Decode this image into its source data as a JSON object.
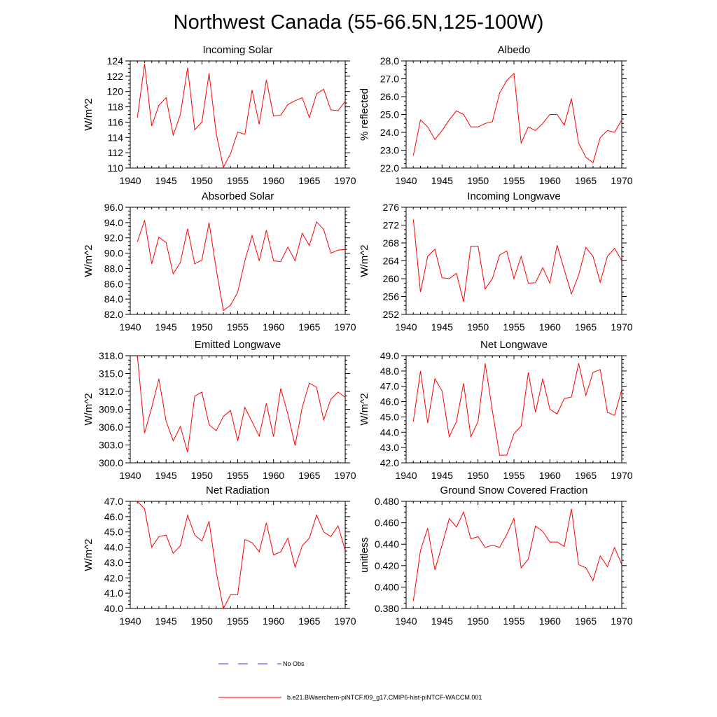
{
  "title": "Northwest Canada (55-66.5N,125-100W)",
  "colors": {
    "model": "#ff0000",
    "obs": "#3333ff",
    "axis": "#000000"
  },
  "legend": {
    "obs_label": "No Obs",
    "model_label": "b.e21.BWaerchem-piNTCF.f09_g17.CMIP6-hist-piNTCF-WACCM.001"
  },
  "chart_data": [
    {
      "type": "line",
      "title": "Incoming Solar",
      "ylabel": "W/m^2",
      "xlim": [
        1940,
        1970
      ],
      "ylim": [
        110,
        124
      ],
      "xticks": [
        1940,
        1945,
        1950,
        1955,
        1960,
        1965,
        1970
      ],
      "yticks": [
        110,
        112,
        114,
        116,
        118,
        120,
        122,
        124
      ],
      "ytick_labels": [
        "110",
        "112",
        "114",
        "116",
        "118",
        "120",
        "122",
        "124"
      ],
      "x": [
        1941,
        1942,
        1943,
        1944,
        1945,
        1946,
        1947,
        1948,
        1949,
        1950,
        1951,
        1952,
        1953,
        1954,
        1955,
        1956,
        1957,
        1958,
        1959,
        1960,
        1961,
        1962,
        1963,
        1964,
        1965,
        1966,
        1967,
        1968,
        1969,
        1970
      ],
      "series": [
        {
          "values": [
            116.6,
            123.6,
            115.5,
            118.2,
            119.2,
            114.3,
            117.0,
            123.1,
            115.0,
            116.0,
            122.4,
            114.5,
            110.1,
            111.9,
            114.7,
            114.4,
            120.2,
            115.7,
            121.5,
            116.8,
            116.9,
            118.3,
            118.8,
            119.2,
            116.6,
            119.7,
            120.3,
            117.6,
            117.5,
            118.7
          ]
        }
      ]
    },
    {
      "type": "line",
      "title": "Albedo",
      "ylabel": "% reflected",
      "xlim": [
        1940,
        1970
      ],
      "ylim": [
        22.0,
        28.0
      ],
      "xticks": [
        1940,
        1945,
        1950,
        1955,
        1960,
        1965,
        1970
      ],
      "yticks": [
        22,
        23,
        24,
        25,
        26,
        27,
        28
      ],
      "ytick_labels": [
        "22.0",
        "23.0",
        "24.0",
        "25.0",
        "26.0",
        "27.0",
        "28.0"
      ],
      "x": [
        1941,
        1942,
        1943,
        1944,
        1945,
        1946,
        1947,
        1948,
        1949,
        1950,
        1951,
        1952,
        1953,
        1954,
        1955,
        1956,
        1957,
        1958,
        1959,
        1960,
        1961,
        1962,
        1963,
        1964,
        1965,
        1966,
        1967,
        1968,
        1969,
        1970
      ],
      "series": [
        {
          "values": [
            22.7,
            24.7,
            24.3,
            23.6,
            24.1,
            24.7,
            25.2,
            25.0,
            24.3,
            24.3,
            24.5,
            24.6,
            26.2,
            26.9,
            27.3,
            23.4,
            24.3,
            24.1,
            24.5,
            25.0,
            25.0,
            24.4,
            25.9,
            23.4,
            22.6,
            22.3,
            23.7,
            24.1,
            24.0,
            24.7
          ]
        }
      ]
    },
    {
      "type": "line",
      "title": "Absorbed Solar",
      "ylabel": "W/m^2",
      "xlim": [
        1940,
        1970
      ],
      "ylim": [
        82.0,
        96.0
      ],
      "xticks": [
        1940,
        1945,
        1950,
        1955,
        1960,
        1965,
        1970
      ],
      "yticks": [
        82,
        84,
        86,
        88,
        90,
        92,
        94,
        96
      ],
      "ytick_labels": [
        "82.0",
        "84.0",
        "86.0",
        "88.0",
        "90.0",
        "92.0",
        "94.0",
        "96.0"
      ],
      "x": [
        1941,
        1942,
        1943,
        1944,
        1945,
        1946,
        1947,
        1948,
        1949,
        1950,
        1951,
        1952,
        1953,
        1954,
        1955,
        1956,
        1957,
        1958,
        1959,
        1960,
        1961,
        1962,
        1963,
        1964,
        1965,
        1966,
        1967,
        1968,
        1969,
        1970
      ],
      "series": [
        {
          "values": [
            91.5,
            94.3,
            88.6,
            92.1,
            91.4,
            87.3,
            88.8,
            93.2,
            88.6,
            89.1,
            94.0,
            87.9,
            82.5,
            83.2,
            84.9,
            89.0,
            92.3,
            89.0,
            93.0,
            89.0,
            88.9,
            90.8,
            89.0,
            92.6,
            91.0,
            94.1,
            93.1,
            90.0,
            90.4,
            90.5
          ]
        }
      ]
    },
    {
      "type": "line",
      "title": "Incoming Longwave",
      "ylabel": "W/m^2",
      "xlim": [
        1940,
        1970
      ],
      "ylim": [
        252,
        276
      ],
      "xticks": [
        1940,
        1945,
        1950,
        1955,
        1960,
        1965,
        1970
      ],
      "yticks": [
        252,
        256,
        260,
        264,
        268,
        272,
        276
      ],
      "ytick_labels": [
        "252",
        "256",
        "260",
        "264",
        "268",
        "272",
        "276"
      ],
      "x": [
        1941,
        1942,
        1943,
        1944,
        1945,
        1946,
        1947,
        1948,
        1949,
        1950,
        1951,
        1952,
        1953,
        1954,
        1955,
        1956,
        1957,
        1958,
        1959,
        1960,
        1961,
        1962,
        1963,
        1964,
        1965,
        1966,
        1967,
        1968,
        1969,
        1970
      ],
      "series": [
        {
          "values": [
            273.3,
            257.0,
            265.0,
            266.6,
            260.2,
            260.0,
            261.2,
            254.8,
            267.3,
            267.3,
            257.7,
            260.0,
            265.3,
            266.2,
            260.0,
            265.0,
            259.0,
            259.1,
            262.5,
            259.0,
            267.5,
            262.0,
            256.6,
            260.8,
            267.0,
            265.0,
            259.2,
            265.0,
            266.8,
            264.0
          ]
        }
      ]
    },
    {
      "type": "line",
      "title": "Emitted Longwave",
      "ylabel": "W/m^2",
      "xlim": [
        1940,
        1970
      ],
      "ylim": [
        300.0,
        318.0
      ],
      "xticks": [
        1940,
        1945,
        1950,
        1955,
        1960,
        1965,
        1970
      ],
      "yticks": [
        300,
        303,
        306,
        309,
        312,
        315,
        318
      ],
      "ytick_labels": [
        "300.0",
        "303.0",
        "306.0",
        "309.0",
        "312.0",
        "315.0",
        "318.0"
      ],
      "x": [
        1941,
        1942,
        1943,
        1944,
        1945,
        1946,
        1947,
        1948,
        1949,
        1950,
        1951,
        1952,
        1953,
        1954,
        1955,
        1956,
        1957,
        1958,
        1959,
        1960,
        1961,
        1962,
        1963,
        1964,
        1965,
        1966,
        1967,
        1968,
        1969,
        1970
      ],
      "series": [
        {
          "values": [
            318.0,
            305.0,
            309.3,
            314.1,
            307.0,
            303.7,
            306.1,
            301.8,
            311.2,
            311.9,
            306.4,
            305.4,
            307.8,
            308.8,
            303.7,
            309.3,
            306.9,
            304.5,
            310.0,
            304.4,
            312.5,
            308.2,
            302.9,
            309.3,
            313.4,
            312.7,
            307.2,
            310.7,
            311.9,
            311.0
          ]
        }
      ]
    },
    {
      "type": "line",
      "title": "Net Longwave",
      "ylabel": "W/m^2",
      "xlim": [
        1940,
        1970
      ],
      "ylim": [
        42.0,
        49.0
      ],
      "xticks": [
        1940,
        1945,
        1950,
        1955,
        1960,
        1965,
        1970
      ],
      "yticks": [
        42,
        43,
        44,
        45,
        46,
        47,
        48,
        49
      ],
      "ytick_labels": [
        "42.0",
        "43.0",
        "44.0",
        "45.0",
        "46.0",
        "47.0",
        "48.0",
        "49.0"
      ],
      "x": [
        1941,
        1942,
        1943,
        1944,
        1945,
        1946,
        1947,
        1948,
        1949,
        1950,
        1951,
        1952,
        1953,
        1954,
        1955,
        1956,
        1957,
        1958,
        1959,
        1960,
        1961,
        1962,
        1963,
        1964,
        1965,
        1966,
        1967,
        1968,
        1969,
        1970
      ],
      "series": [
        {
          "values": [
            44.7,
            48.0,
            44.6,
            47.5,
            46.7,
            43.7,
            44.7,
            47.2,
            43.7,
            44.7,
            48.5,
            45.4,
            42.5,
            42.5,
            43.9,
            44.4,
            47.9,
            45.3,
            47.5,
            45.5,
            45.2,
            46.2,
            46.3,
            48.5,
            46.4,
            47.9,
            48.1,
            45.3,
            45.1,
            46.8
          ]
        }
      ]
    },
    {
      "type": "line",
      "title": "Net Radiation",
      "ylabel": "W/m^2",
      "xlim": [
        1940,
        1970
      ],
      "ylim": [
        40.0,
        47.0
      ],
      "xticks": [
        1940,
        1945,
        1950,
        1955,
        1960,
        1965,
        1970
      ],
      "yticks": [
        40,
        41,
        42,
        43,
        44,
        45,
        46,
        47
      ],
      "ytick_labels": [
        "40.0",
        "41.0",
        "42.0",
        "43.0",
        "44.0",
        "45.0",
        "46.0",
        "47.0"
      ],
      "x": [
        1941,
        1942,
        1943,
        1944,
        1945,
        1946,
        1947,
        1948,
        1949,
        1950,
        1951,
        1952,
        1953,
        1954,
        1955,
        1956,
        1957,
        1958,
        1959,
        1960,
        1961,
        1962,
        1963,
        1964,
        1965,
        1966,
        1967,
        1968,
        1969,
        1970
      ],
      "series": [
        {
          "values": [
            47.0,
            46.5,
            44.0,
            44.7,
            44.8,
            43.6,
            44.1,
            46.1,
            44.8,
            44.4,
            45.7,
            42.4,
            40.0,
            40.9,
            40.9,
            44.5,
            44.3,
            43.7,
            45.6,
            43.5,
            43.7,
            44.6,
            42.7,
            44.1,
            44.6,
            46.1,
            45.0,
            44.7,
            45.4,
            43.8
          ]
        }
      ]
    },
    {
      "type": "line",
      "title": "Ground Snow Covered Fraction",
      "ylabel": "unitless",
      "xlim": [
        1940,
        1970
      ],
      "ylim": [
        0.38,
        0.48
      ],
      "xticks": [
        1940,
        1945,
        1950,
        1955,
        1960,
        1965,
        1970
      ],
      "yticks": [
        0.38,
        0.4,
        0.42,
        0.44,
        0.46,
        0.48
      ],
      "ytick_labels": [
        "0.380",
        "0.400",
        "0.420",
        "0.440",
        "0.460",
        "0.480"
      ],
      "x": [
        1941,
        1942,
        1943,
        1944,
        1945,
        1946,
        1947,
        1948,
        1949,
        1950,
        1951,
        1952,
        1953,
        1954,
        1955,
        1956,
        1957,
        1958,
        1959,
        1960,
        1961,
        1962,
        1963,
        1964,
        1965,
        1966,
        1967,
        1968,
        1969,
        1970
      ],
      "series": [
        {
          "values": [
            0.387,
            0.434,
            0.455,
            0.416,
            0.439,
            0.464,
            0.456,
            0.47,
            0.445,
            0.447,
            0.437,
            0.439,
            0.437,
            0.449,
            0.464,
            0.418,
            0.426,
            0.457,
            0.452,
            0.442,
            0.442,
            0.438,
            0.473,
            0.421,
            0.418,
            0.406,
            0.429,
            0.419,
            0.437,
            0.421
          ]
        }
      ]
    }
  ]
}
